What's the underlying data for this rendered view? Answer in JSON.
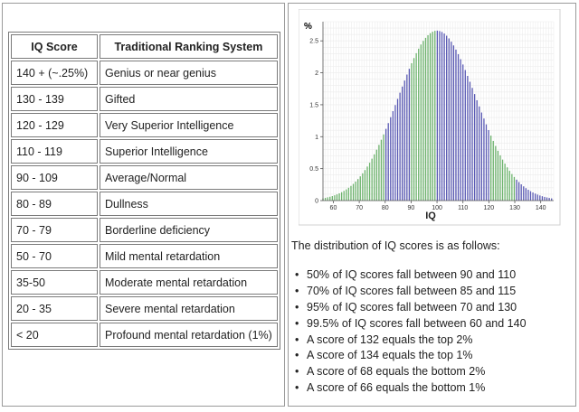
{
  "table": {
    "headers": [
      "IQ Score",
      "Traditional Ranking System"
    ],
    "rows": [
      [
        "140 + (~.25%)",
        "Genius or near genius"
      ],
      [
        "130 - 139",
        "Gifted"
      ],
      [
        "120 - 129",
        "Very Superior Intelligence"
      ],
      [
        "110 - 119",
        "Superior Intelligence"
      ],
      [
        "90 - 109",
        "Average/Normal"
      ],
      [
        "80 - 89",
        "Dullness"
      ],
      [
        "70 - 79",
        "Borderline deficiency"
      ],
      [
        "50 - 70",
        "Mild mental retardation"
      ],
      [
        "35-50",
        "Moderate mental retardation"
      ],
      [
        "20 - 35",
        "Severe mental retardation"
      ],
      [
        "< 20",
        "Profound mental retardation (1%)"
      ]
    ]
  },
  "chart_data": {
    "type": "bar",
    "ylabel": "%",
    "xlabel": "IQ",
    "x_ticks": [
      60,
      70,
      80,
      90,
      100,
      110,
      120,
      130,
      140
    ],
    "y_ticks": [
      0,
      0.5,
      1,
      1.5,
      2,
      2.5
    ],
    "xlim": [
      56,
      145
    ],
    "ylim": [
      0,
      2.8
    ],
    "distribution": {
      "mean": 100,
      "sd": 15,
      "peak_percent": 2.66
    },
    "bar_colors": [
      "#6db36d",
      "#5a5ab4"
    ],
    "grid": true
  },
  "distribution": {
    "intro": "The distribution of IQ scores is as follows:",
    "items": [
      "50% of IQ scores fall between 90 and 110",
      "70% of IQ scores fall between 85 and 115",
      "95% of IQ scores fall between 70 and 130",
      "99.5% of IQ scores fall between 60 and 140",
      "A score of 132 equals the top 2%",
      "A score of 134 equals the top 1%",
      "A score of 68 equals the bottom 2%",
      "A score of 66 equals the bottom 1%"
    ]
  }
}
